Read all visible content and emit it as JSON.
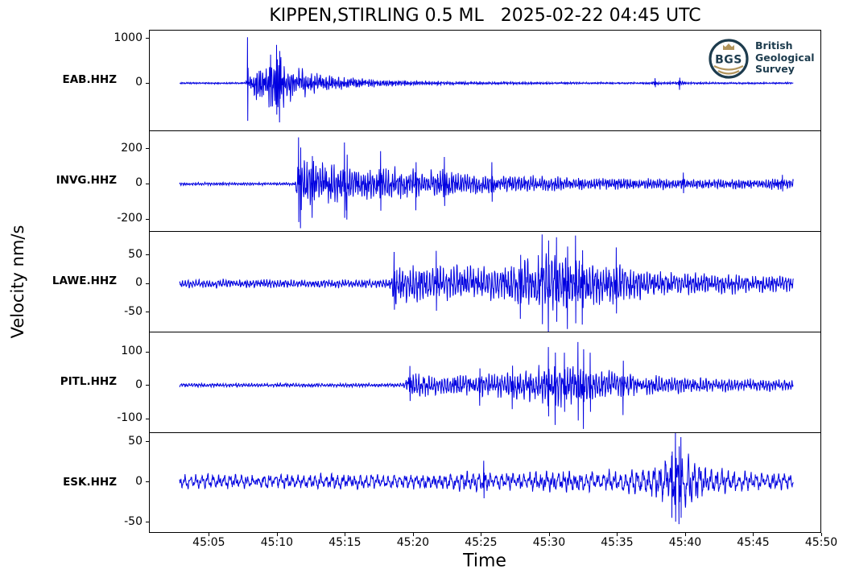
{
  "logo": {
    "abbr": "BGS",
    "lines": [
      "British",
      "Geological",
      "Survey"
    ],
    "navy": "#1d3c4e",
    "gold": "#b2955c"
  },
  "chart_data": {
    "type": "line",
    "title": "KIPPEN,STIRLING 0.5 ML   2025-02-22 04:45 UTC",
    "xlabel": "Time",
    "ylabel": "Velocity nm/s",
    "legend": "none",
    "grid": false,
    "trace_color": "#0000e0",
    "x_unit_note": "seconds after 04:45:00 UTC, axis labels are mm:ss",
    "xlim": [
      0.6,
      50
    ],
    "x_ticks": [
      {
        "value": 5,
        "label": "45:05"
      },
      {
        "value": 10,
        "label": "45:10"
      },
      {
        "value": 15,
        "label": "45:15"
      },
      {
        "value": 20,
        "label": "45:20"
      },
      {
        "value": 25,
        "label": "45:25"
      },
      {
        "value": 30,
        "label": "45:30"
      },
      {
        "value": 35,
        "label": "45:35"
      },
      {
        "value": 40,
        "label": "45:40"
      },
      {
        "value": 45,
        "label": "45:45"
      },
      {
        "value": 50,
        "label": "45:50"
      }
    ],
    "sample_rate_hz": 50,
    "trace_time_range": [
      2.8,
      48.0
    ],
    "panels": [
      {
        "station": "EAB.HHZ",
        "ylim": [
          -1060,
          1180
        ],
        "y_ticks": [
          1000,
          0
        ],
        "noise_freqs": [
          7.5,
          12
        ],
        "seed": 11,
        "arrival_s": 7.8,
        "envelope": [
          [
            2.8,
            25
          ],
          [
            7.6,
            25
          ],
          [
            7.75,
            120
          ],
          [
            8.1,
            380
          ],
          [
            8.7,
            480
          ],
          [
            9.4,
            600
          ],
          [
            9.9,
            780
          ],
          [
            10.4,
            620
          ],
          [
            11,
            480
          ],
          [
            12,
            360
          ],
          [
            13,
            260
          ],
          [
            14,
            205
          ],
          [
            15,
            165
          ],
          [
            16,
            135
          ],
          [
            17,
            112
          ],
          [
            18,
            95
          ],
          [
            20,
            70
          ],
          [
            22,
            55
          ],
          [
            24,
            47
          ],
          [
            27,
            38
          ],
          [
            30,
            33
          ],
          [
            33,
            29
          ],
          [
            36,
            27
          ],
          [
            37.5,
            30
          ],
          [
            37.8,
            70
          ],
          [
            38.2,
            32
          ],
          [
            39.3,
            34
          ],
          [
            39.6,
            85
          ],
          [
            40.1,
            34
          ],
          [
            42,
            28
          ],
          [
            45,
            26
          ],
          [
            48,
            26
          ]
        ],
        "spikes": [
          {
            "t": 7.8,
            "a": 1030
          },
          {
            "t": 9.5,
            "a": 640
          },
          {
            "t": 9.95,
            "a": 860
          },
          {
            "t": 10.15,
            "a": -880
          },
          {
            "t": 37.82,
            "a": 110
          },
          {
            "t": 39.62,
            "a": -150
          }
        ]
      },
      {
        "station": "INVG.HHZ",
        "ylim": [
          -271,
          303
        ],
        "y_ticks": [
          200,
          0,
          -200
        ],
        "noise_freqs": [
          6,
          10.5
        ],
        "seed": 22,
        "arrival_s": 11.5,
        "envelope": [
          [
            2.8,
            10
          ],
          [
            11.3,
            10
          ],
          [
            11.5,
            165
          ],
          [
            11.9,
            185
          ],
          [
            12.4,
            150
          ],
          [
            13,
            135
          ],
          [
            13.7,
            155
          ],
          [
            14.4,
            125
          ],
          [
            15,
            160
          ],
          [
            15.5,
            130
          ],
          [
            16,
            120
          ],
          [
            17,
            125
          ],
          [
            18,
            112
          ],
          [
            19,
            105
          ],
          [
            20,
            98
          ],
          [
            21,
            90
          ],
          [
            22,
            100
          ],
          [
            23,
            85
          ],
          [
            24,
            76
          ],
          [
            25,
            70
          ],
          [
            26,
            64
          ],
          [
            28,
            58
          ],
          [
            30,
            52
          ],
          [
            32,
            47
          ],
          [
            34,
            43
          ],
          [
            36,
            40
          ],
          [
            38,
            37
          ],
          [
            40,
            36
          ],
          [
            42,
            34
          ],
          [
            44,
            34
          ],
          [
            46,
            36
          ],
          [
            48,
            38
          ]
        ],
        "spikes": [
          {
            "t": 11.55,
            "a": 268
          },
          {
            "t": 11.7,
            "a": -255
          },
          {
            "t": 12.55,
            "a": -195
          },
          {
            "t": 14.95,
            "a": 238
          },
          {
            "t": 15.12,
            "a": -205
          },
          {
            "t": 17.6,
            "a": 188
          },
          {
            "t": 20.2,
            "a": -152
          },
          {
            "t": 22.3,
            "a": 155
          },
          {
            "t": 25.8,
            "a": 125
          },
          {
            "t": 39.9,
            "a": 65
          },
          {
            "t": 47.2,
            "a": 52
          }
        ]
      },
      {
        "station": "LAWE.HHZ",
        "ylim": [
          -84.5,
          91.5
        ],
        "y_ticks": [
          50,
          0,
          -50
        ],
        "noise_freqs": [
          5,
          9
        ],
        "seed": 33,
        "arrival_s": 18.5,
        "envelope": [
          [
            2.8,
            9
          ],
          [
            17.8,
            9
          ],
          [
            18.4,
            14
          ],
          [
            18.6,
            48
          ],
          [
            19.2,
            43
          ],
          [
            20,
            40
          ],
          [
            21,
            36
          ],
          [
            21.7,
            45
          ],
          [
            22.5,
            34
          ],
          [
            23.5,
            42
          ],
          [
            24.5,
            35
          ],
          [
            25.5,
            38
          ],
          [
            26.5,
            42
          ],
          [
            27.5,
            48
          ],
          [
            28.5,
            55
          ],
          [
            29.3,
            63
          ],
          [
            30,
            68
          ],
          [
            30.8,
            62
          ],
          [
            31.5,
            66
          ],
          [
            32.3,
            60
          ],
          [
            33,
            49
          ],
          [
            34,
            42
          ],
          [
            35,
            46
          ],
          [
            36,
            34
          ],
          [
            37,
            30
          ],
          [
            38,
            27
          ],
          [
            40,
            24
          ],
          [
            42,
            22
          ],
          [
            44,
            20
          ],
          [
            46,
            19
          ],
          [
            48,
            18
          ]
        ],
        "spikes": [
          {
            "t": 18.6,
            "a": 56
          },
          {
            "t": 21.7,
            "a": 58
          },
          {
            "t": 27.9,
            "a": -62
          },
          {
            "t": 29.5,
            "a": 87
          },
          {
            "t": 29.95,
            "a": -93
          },
          {
            "t": 30.55,
            "a": 82
          },
          {
            "t": 31.35,
            "a": -80
          },
          {
            "t": 31.95,
            "a": 85
          },
          {
            "t": 32.45,
            "a": -72
          },
          {
            "t": 34.95,
            "a": 64
          }
        ]
      },
      {
        "station": "PITL.HHZ",
        "ylim": [
          -142,
          159
        ],
        "y_ticks": [
          100,
          0,
          -100
        ],
        "noise_freqs": [
          5.2,
          9.5
        ],
        "seed": 44,
        "arrival_s": 19.7,
        "envelope": [
          [
            2.8,
            7
          ],
          [
            19.3,
            7
          ],
          [
            19.7,
            50
          ],
          [
            20.3,
            44
          ],
          [
            21,
            40
          ],
          [
            22,
            37
          ],
          [
            23,
            35
          ],
          [
            24,
            38
          ],
          [
            25,
            42
          ],
          [
            26,
            44
          ],
          [
            27,
            48
          ],
          [
            28,
            55
          ],
          [
            29,
            65
          ],
          [
            29.8,
            75
          ],
          [
            30.6,
            84
          ],
          [
            31.4,
            78
          ],
          [
            32,
            86
          ],
          [
            32.7,
            75
          ],
          [
            33.4,
            63
          ],
          [
            34.2,
            55
          ],
          [
            35,
            50
          ],
          [
            36,
            44
          ],
          [
            37,
            40
          ],
          [
            38,
            36
          ],
          [
            39,
            32
          ],
          [
            40,
            29
          ],
          [
            42,
            26
          ],
          [
            44,
            23
          ],
          [
            46,
            22
          ],
          [
            48,
            21
          ]
        ],
        "spikes": [
          {
            "t": 19.75,
            "a": 58
          },
          {
            "t": 24.9,
            "a": -62
          },
          {
            "t": 27.3,
            "a": -72
          },
          {
            "t": 29.95,
            "a": 115
          },
          {
            "t": 30.45,
            "a": -120
          },
          {
            "t": 31.15,
            "a": 98
          },
          {
            "t": 32.15,
            "a": 130
          },
          {
            "t": 32.55,
            "a": -132
          },
          {
            "t": 33.05,
            "a": 98
          },
          {
            "t": 35.45,
            "a": -90
          }
        ]
      },
      {
        "station": "ESK.HHZ",
        "ylim": [
          -64,
          61
        ],
        "y_ticks": [
          50,
          0,
          -50
        ],
        "noise_freqs": [
          2.4,
          6.5
        ],
        "seed": 55,
        "arrival_s": 24.5,
        "envelope": [
          [
            2.8,
            11
          ],
          [
            6,
            12
          ],
          [
            10,
            11
          ],
          [
            14,
            12
          ],
          [
            18,
            11
          ],
          [
            22,
            12
          ],
          [
            24.5,
            16
          ],
          [
            25.5,
            18
          ],
          [
            26.5,
            15
          ],
          [
            28,
            15
          ],
          [
            30,
            16
          ],
          [
            32,
            15
          ],
          [
            34,
            17
          ],
          [
            35.5,
            19
          ],
          [
            37,
            23
          ],
          [
            38,
            30
          ],
          [
            38.8,
            40
          ],
          [
            39.4,
            50
          ],
          [
            39.8,
            46
          ],
          [
            40.3,
            36
          ],
          [
            41,
            27
          ],
          [
            42,
            21
          ],
          [
            43,
            18
          ],
          [
            44,
            16
          ],
          [
            46,
            14
          ],
          [
            48,
            13
          ]
        ],
        "spikes": [
          {
            "t": 25.2,
            "a": 26
          },
          {
            "t": 39.05,
            "a": -46
          },
          {
            "t": 39.32,
            "a": 62
          },
          {
            "t": 39.58,
            "a": -54
          },
          {
            "t": 39.72,
            "a": 56
          }
        ]
      }
    ]
  }
}
